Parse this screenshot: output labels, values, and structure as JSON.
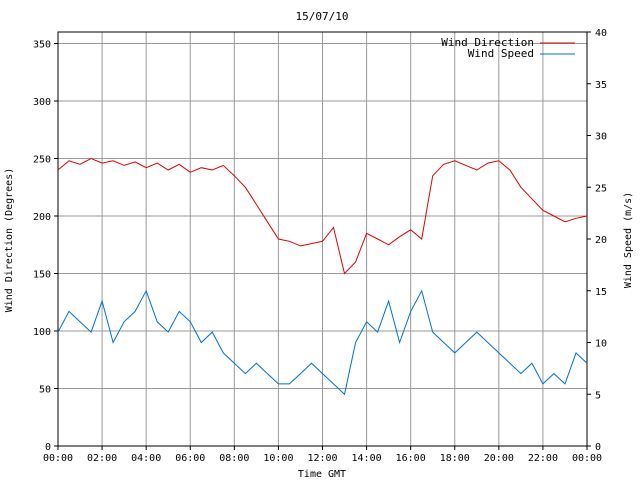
{
  "chart_data": {
    "type": "line",
    "title": "15/07/10",
    "xlabel": "Time GMT",
    "ylabel_left": "Wind Direction (Degrees)",
    "ylabel_right": "Wind Speed (m/s)",
    "x_ticks": [
      "00:00",
      "02:00",
      "04:00",
      "06:00",
      "08:00",
      "10:00",
      "12:00",
      "14:00",
      "16:00",
      "18:00",
      "20:00",
      "22:00",
      "00:00"
    ],
    "xlim_hours": [
      0,
      24
    ],
    "ylim_left": [
      0,
      360
    ],
    "ylim_right": [
      0,
      40
    ],
    "y_ticks_left": [
      0,
      50,
      100,
      150,
      200,
      250,
      300,
      350
    ],
    "y_ticks_right": [
      0,
      5,
      10,
      15,
      20,
      25,
      30,
      35,
      40
    ],
    "grid": true,
    "legend_position": "top-right",
    "series": [
      {
        "name": "Wind Direction",
        "axis": "left",
        "color": "#e00000",
        "x_hours": [
          0,
          0.5,
          1,
          1.5,
          2,
          2.5,
          3,
          3.5,
          4,
          4.5,
          5,
          5.5,
          6,
          6.5,
          7,
          7.5,
          8,
          8.5,
          9,
          9.5,
          10,
          10.5,
          11,
          11.5,
          12,
          12.5,
          13,
          13.5,
          14,
          14.5,
          15,
          15.5,
          16,
          16.5,
          17,
          17.5,
          18,
          18.5,
          19,
          19.5,
          20,
          20.5,
          21,
          21.5,
          22,
          22.5,
          23,
          23.5,
          24
        ],
        "values": [
          240,
          248,
          245,
          250,
          246,
          248,
          244,
          247,
          242,
          246,
          240,
          245,
          238,
          242,
          240,
          244,
          235,
          225,
          210,
          195,
          180,
          178,
          174,
          176,
          178,
          190,
          150,
          160,
          185,
          180,
          175,
          182,
          188,
          180,
          235,
          245,
          248,
          244,
          240,
          246,
          248,
          240,
          225,
          215,
          205,
          200,
          195,
          198,
          200
        ]
      },
      {
        "name": "Wind Speed",
        "axis": "right",
        "color": "#0070d0",
        "x_hours": [
          0,
          0.5,
          1,
          1.5,
          2,
          2.5,
          3,
          3.5,
          4,
          4.5,
          5,
          5.5,
          6,
          6.5,
          7,
          7.5,
          8,
          8.5,
          9,
          9.5,
          10,
          10.5,
          11,
          11.5,
          12,
          12.5,
          13,
          13.5,
          14,
          14.5,
          15,
          15.5,
          16,
          16.5,
          17,
          17.5,
          18,
          18.5,
          19,
          19.5,
          20,
          20.5,
          21,
          21.5,
          22,
          22.5,
          23,
          23.5,
          24
        ],
        "values": [
          11,
          13,
          12,
          11,
          14,
          10,
          12,
          13,
          15,
          12,
          11,
          13,
          12,
          10,
          11,
          9,
          8,
          7,
          8,
          7,
          6,
          6,
          7,
          8,
          7,
          6,
          5,
          10,
          12,
          11,
          14,
          10,
          13,
          15,
          11,
          10,
          9,
          10,
          11,
          10,
          9,
          8,
          7,
          8,
          6,
          7,
          6,
          9,
          8
        ]
      }
    ]
  }
}
